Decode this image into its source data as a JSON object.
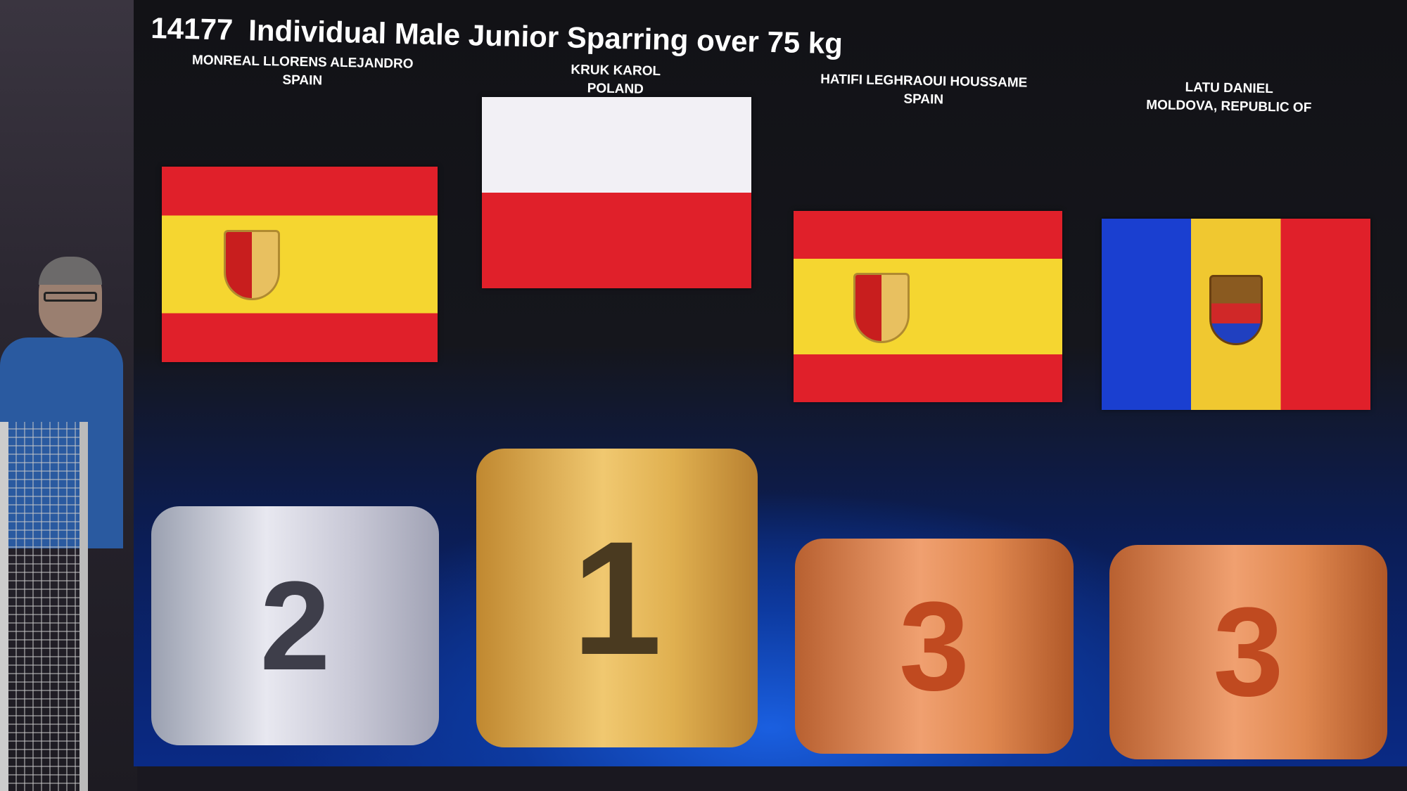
{
  "event": {
    "number": "14177",
    "title": "Individual Male Junior Sparring over 75 kg"
  },
  "podium": [
    {
      "name": "MONREAL LLORENS ALEJANDRO",
      "country": "SPAIN",
      "place": "2",
      "flag": "spain",
      "medal_color": "#d0d0dc"
    },
    {
      "name": "KRUK KAROL",
      "country": "POLAND",
      "place": "1",
      "flag": "poland",
      "medal_color": "#e8b860"
    },
    {
      "name": "HATIFI LEGHRAOUI HOUSSAME",
      "country": "SPAIN",
      "place": "3",
      "flag": "spain",
      "medal_color": "#e08850"
    },
    {
      "name": "LATU DANIEL",
      "country": "MOLDOVA, REPUBLIC OF",
      "place": "3",
      "flag": "moldova",
      "medal_color": "#e08850"
    }
  ]
}
